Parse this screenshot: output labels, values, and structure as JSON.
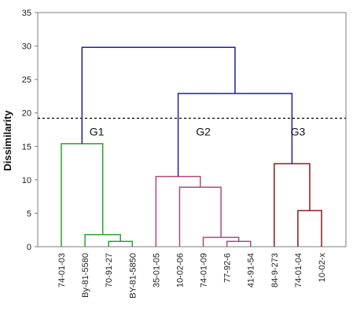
{
  "chart_data": {
    "type": "dendrogram",
    "ylabel": "Dissimilarity",
    "ylim": [
      0,
      35
    ],
    "yticks": [
      0,
      5,
      10,
      15,
      20,
      25,
      30,
      35
    ],
    "threshold": 19.2,
    "leaves": [
      "74-01-03",
      "By-81-5580",
      "70-91-27",
      "BY-81-5850",
      "35-01-05",
      "10-02-06",
      "74-01-09",
      "77-92-6",
      "41-91-54",
      "84-9-273",
      "74-01-04",
      "10-02-x"
    ],
    "groups": [
      {
        "label": "G1",
        "color": "#2ca02c",
        "leaves": [
          0,
          1,
          2,
          3
        ]
      },
      {
        "label": "G2",
        "color": "#b04a7e",
        "leaves": [
          4,
          5,
          6,
          7,
          8
        ]
      },
      {
        "label": "G3",
        "color": "#8b1a1a",
        "leaves": [
          9,
          10,
          11
        ]
      }
    ],
    "merges": [
      {
        "a": "L2",
        "b": "L3",
        "height": 0.8,
        "color": "#2ca02c"
      },
      {
        "a": "L1",
        "b": "M0",
        "height": 1.8,
        "color": "#2ca02c"
      },
      {
        "a": "L0",
        "b": "M1",
        "height": 15.4,
        "color": "#2ca02c"
      },
      {
        "a": "L7",
        "b": "L8",
        "height": 0.8,
        "color": "#b04a7e"
      },
      {
        "a": "L6",
        "b": "M3",
        "height": 1.4,
        "color": "#b04a7e"
      },
      {
        "a": "L5",
        "b": "M4",
        "height": 8.9,
        "color": "#b04a7e"
      },
      {
        "a": "L4",
        "b": "M5",
        "height": 10.5,
        "color": "#b04a7e"
      },
      {
        "a": "L10",
        "b": "L11",
        "height": 5.4,
        "color": "#8b1a1a"
      },
      {
        "a": "L9",
        "b": "M7",
        "height": 12.4,
        "color": "#8b1a1a"
      },
      {
        "a": "M6",
        "b": "M8",
        "height": 22.9,
        "color": "#1f1fa0"
      },
      {
        "a": "M2",
        "b": "M9",
        "height": 29.8,
        "color": "#1f1fa0"
      }
    ]
  }
}
